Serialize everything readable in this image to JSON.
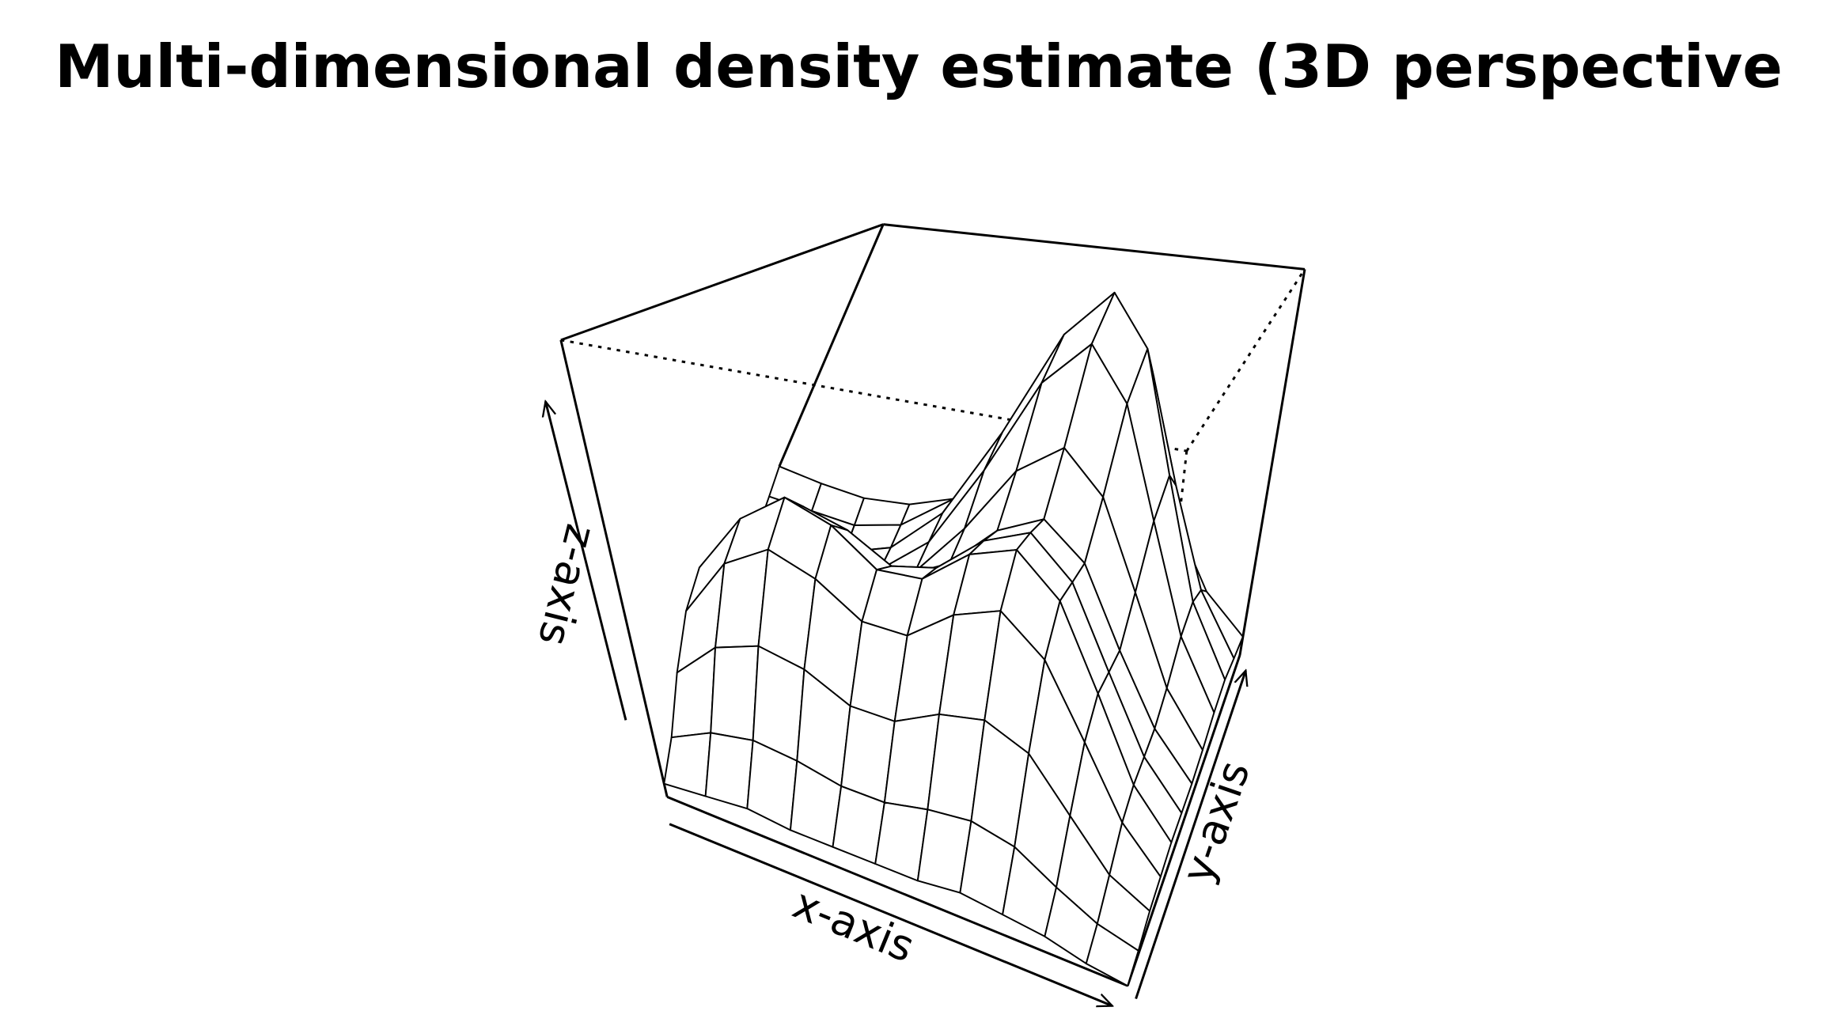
{
  "chart_data": {
    "type": "surface",
    "title": "Multi-dimensional density estimate (3D perspective",
    "xlabel": "x-axis",
    "ylabel": "y-axis",
    "zlabel": "z-axis",
    "color": "#000000",
    "z": [
      [
        0.03,
        0.07,
        0.16,
        0.25,
        0.3,
        0.25,
        0.16,
        0.07,
        0.03,
        0.01,
        0,
        0
      ],
      [
        0.04,
        0.12,
        0.26,
        0.41,
        0.47,
        0.41,
        0.26,
        0.12,
        0.04,
        0.01,
        0.01,
        0
      ],
      [
        0.05,
        0.14,
        0.3,
        0.48,
        0.56,
        0.48,
        0.31,
        0.15,
        0.07,
        0.03,
        0.02,
        0.01
      ],
      [
        0.04,
        0.13,
        0.28,
        0.44,
        0.52,
        0.45,
        0.3,
        0.18,
        0.12,
        0.1,
        0.08,
        0.05
      ],
      [
        0.04,
        0.11,
        0.23,
        0.37,
        0.44,
        0.39,
        0.3,
        0.24,
        0.25,
        0.26,
        0.22,
        0.13
      ],
      [
        0.04,
        0.11,
        0.23,
        0.37,
        0.45,
        0.42,
        0.37,
        0.4,
        0.5,
        0.55,
        0.47,
        0.29
      ],
      [
        0.04,
        0.13,
        0.28,
        0.45,
        0.54,
        0.52,
        0.49,
        0.59,
        0.78,
        0.87,
        0.74,
        0.46
      ],
      [
        0.05,
        0.14,
        0.3,
        0.49,
        0.58,
        0.57,
        0.55,
        0.68,
        0.91,
        1.01,
        0.86,
        0.54
      ],
      [
        0.04,
        0.12,
        0.26,
        0.41,
        0.49,
        0.48,
        0.47,
        0.58,
        0.77,
        0.87,
        0.74,
        0.46
      ],
      [
        0.03,
        0.07,
        0.16,
        0.26,
        0.31,
        0.3,
        0.29,
        0.37,
        0.49,
        0.55,
        0.46,
        0.29
      ],
      [
        0.01,
        0.03,
        0.07,
        0.12,
        0.14,
        0.14,
        0.14,
        0.17,
        0.23,
        0.25,
        0.21,
        0.13
      ],
      [
        0,
        0.01,
        0.03,
        0.04,
        0.05,
        0.05,
        0.05,
        0.06,
        0.08,
        0.09,
        0.07,
        0.05
      ]
    ]
  }
}
